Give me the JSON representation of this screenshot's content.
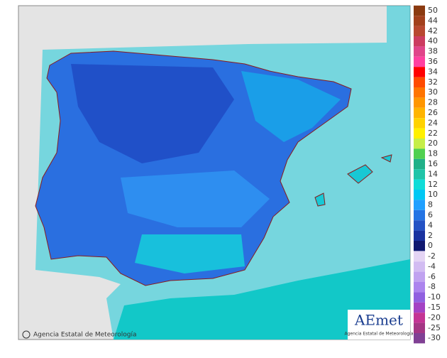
{
  "footer": {
    "credit": "Agencia Estatal de Meteorología"
  },
  "logo": {
    "name": "AEmet",
    "subtitle": "Agencia Estatal de Meteorología"
  },
  "legend": {
    "positive": [
      {
        "label": "50",
        "color": "#8b3a10"
      },
      {
        "label": "44",
        "color": "#a2401c"
      },
      {
        "label": "42",
        "color": "#b84830"
      },
      {
        "label": "40",
        "color": "#cc3c60"
      },
      {
        "label": "38",
        "color": "#e0458a"
      },
      {
        "label": "36",
        "color": "#ff40a0"
      },
      {
        "label": "34",
        "color": "#ff0000"
      },
      {
        "label": "32",
        "color": "#ff4a00"
      },
      {
        "label": "30",
        "color": "#ff7400"
      },
      {
        "label": "28",
        "color": "#ff9600"
      },
      {
        "label": "26",
        "color": "#ffb400"
      },
      {
        "label": "24",
        "color": "#ffd200"
      },
      {
        "label": "22",
        "color": "#fff000"
      },
      {
        "label": "20",
        "color": "#c6ee48"
      },
      {
        "label": "18",
        "color": "#50d050"
      },
      {
        "label": "16",
        "color": "#20b088"
      },
      {
        "label": "14",
        "color": "#20c4a8"
      },
      {
        "label": "12",
        "color": "#10dcd8"
      },
      {
        "label": "10",
        "color": "#00c8f4"
      },
      {
        "label": "8",
        "color": "#20a0ff"
      },
      {
        "label": "6",
        "color": "#2474e4"
      },
      {
        "label": "4",
        "color": "#2452c4"
      },
      {
        "label": "2",
        "color": "#1a32a0"
      },
      {
        "label": "0",
        "color": "#101870"
      }
    ],
    "negative": [
      {
        "label": "-2",
        "color": "#e4d4f4"
      },
      {
        "label": "-4",
        "color": "#d2bcf2"
      },
      {
        "label": "-6",
        "color": "#c0a2f0"
      },
      {
        "label": "-8",
        "color": "#ac84ee"
      },
      {
        "label": "-10",
        "color": "#9060e0"
      },
      {
        "label": "-15",
        "color": "#a442c4"
      },
      {
        "label": "-20",
        "color": "#c43494"
      },
      {
        "label": "-25",
        "color": "#a43684"
      },
      {
        "label": "-30",
        "color": "#804094"
      }
    ]
  }
}
